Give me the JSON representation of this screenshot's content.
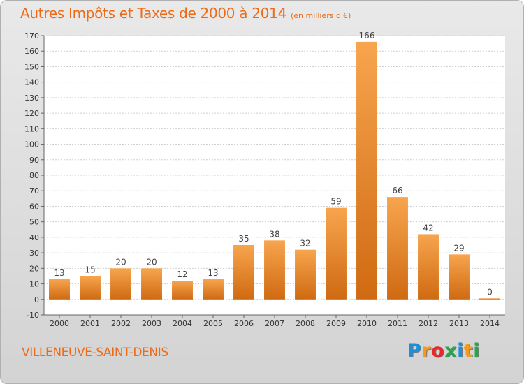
{
  "title": "Autres Impôts et Taxes de 2000 à 2014",
  "subtitle": "(en milliers d'€)",
  "commune": "VILLENEUVE-SAINT-DENIS",
  "brand": {
    "name": "Proxiti",
    "colors": [
      "#1e8fd6",
      "#f39a1f",
      "#e8282a",
      "#2aa64a",
      "#1e8fd6",
      "#f39a1f",
      "#2aa64a"
    ]
  },
  "colors": {
    "accent": "#ee6a16",
    "bar_light": "#f7a54e",
    "bar_dark": "#cf6a12"
  },
  "chart_data": {
    "type": "bar",
    "title": "Autres Impôts et Taxes de 2000 à 2014",
    "subtitle": "(en milliers d'€)",
    "xlabel": "",
    "ylabel": "",
    "categories": [
      "2000",
      "2001",
      "2002",
      "2003",
      "2004",
      "2005",
      "2006",
      "2007",
      "2008",
      "2009",
      "2010",
      "2011",
      "2012",
      "2013",
      "2014"
    ],
    "values": [
      13,
      15,
      20,
      20,
      12,
      13,
      35,
      38,
      32,
      59,
      166,
      66,
      42,
      29,
      0
    ],
    "ylim": [
      -10,
      170
    ],
    "yticks": [
      -10,
      0,
      10,
      20,
      30,
      40,
      50,
      60,
      70,
      80,
      90,
      100,
      110,
      120,
      130,
      140,
      150,
      160,
      170
    ],
    "grid": true
  }
}
